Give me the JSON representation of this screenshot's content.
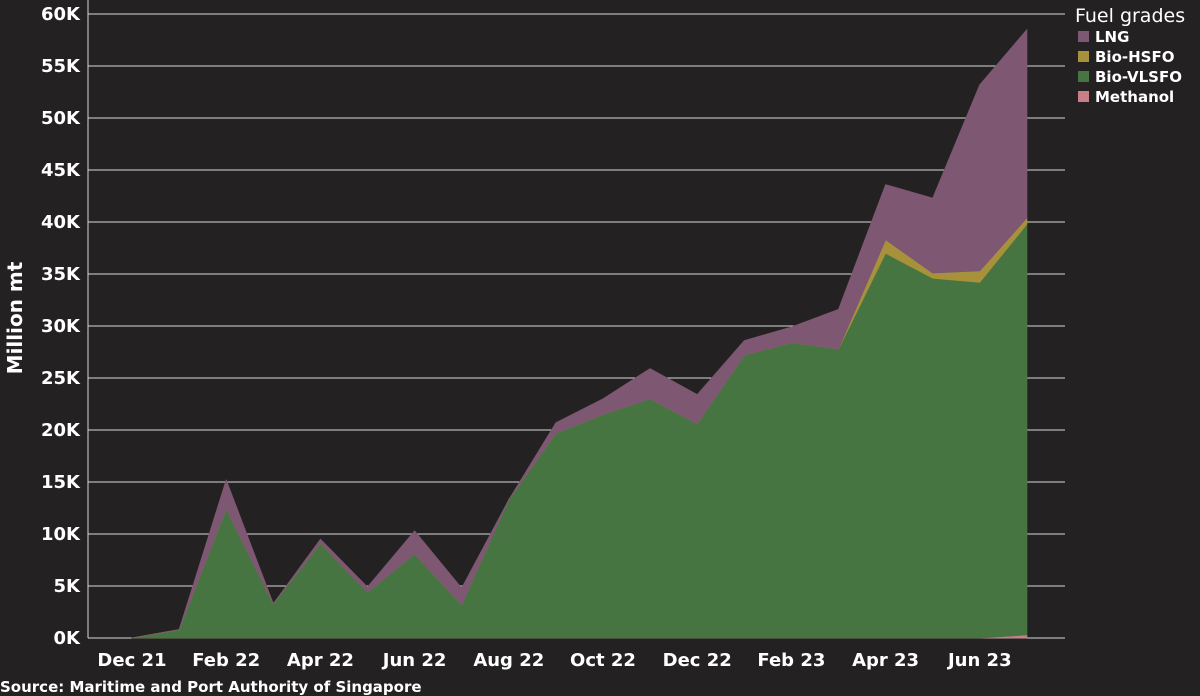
{
  "chart_data": {
    "type": "area",
    "stacked": true,
    "title": "",
    "ylabel": "Million mt",
    "xlabel": "",
    "ylim": [
      0,
      60000
    ],
    "yticks": [
      0,
      5000,
      10000,
      15000,
      20000,
      25000,
      30000,
      35000,
      40000,
      45000,
      50000,
      55000,
      60000
    ],
    "ytick_labels": [
      "0K",
      "5K",
      "10K",
      "15K",
      "20K",
      "25K",
      "30K",
      "35K",
      "40K",
      "45K",
      "50K",
      "55K",
      "60K"
    ],
    "x": [
      "Dec 21",
      "Jan 22",
      "Feb 22",
      "Mar 22",
      "Apr 22",
      "May 22",
      "Jun 22",
      "Jul 22",
      "Aug 22",
      "Sep 22",
      "Oct 22",
      "Nov 22",
      "Dec 22",
      "Jan 23",
      "Feb 23",
      "Mar 23",
      "Apr 23",
      "May 23",
      "Jun 23",
      "Jul 23"
    ],
    "xtick_labels": [
      "Dec 21",
      "Feb 22",
      "Apr 22",
      "Jun 22",
      "Aug 22",
      "Oct 22",
      "Dec 22",
      "Feb 23",
      "Apr 23",
      "Jun 23"
    ],
    "grid": "horizontal",
    "legend": {
      "title": "Fuel grades",
      "position": "top-right"
    },
    "series": [
      {
        "name": "Methanol",
        "color": "#c97f86",
        "values": [
          0,
          0,
          0,
          0,
          0,
          0,
          0,
          0,
          0,
          0,
          0,
          0,
          0,
          0,
          0,
          0,
          0,
          0,
          0,
          300
        ]
      },
      {
        "name": "Bio-VLSFO",
        "color": "#467541",
        "values": [
          0,
          800,
          12400,
          3300,
          9100,
          4400,
          8100,
          3200,
          13300,
          19700,
          21500,
          23000,
          20600,
          27200,
          28400,
          27800,
          37000,
          34600,
          34200,
          39500
        ]
      },
      {
        "name": "Bio-HSFO",
        "color": "#a8913b",
        "values": [
          0,
          0,
          0,
          0,
          0,
          0,
          0,
          0,
          0,
          0,
          0,
          0,
          0,
          0,
          0,
          0,
          1300,
          500,
          1100,
          600
        ]
      },
      {
        "name": "LNG",
        "color": "#7e5773",
        "values": [
          0,
          0,
          2800,
          0,
          400,
          500,
          2200,
          1600,
          0,
          1000,
          1500,
          2900,
          2800,
          1400,
          1500,
          3800,
          5300,
          7200,
          17900,
          18100
        ]
      }
    ],
    "legend_order": [
      "LNG",
      "Bio-HSFO",
      "Bio-VLSFO",
      "Methanol"
    ]
  },
  "source": "Source: Maritime and Port Authority of Singapore"
}
